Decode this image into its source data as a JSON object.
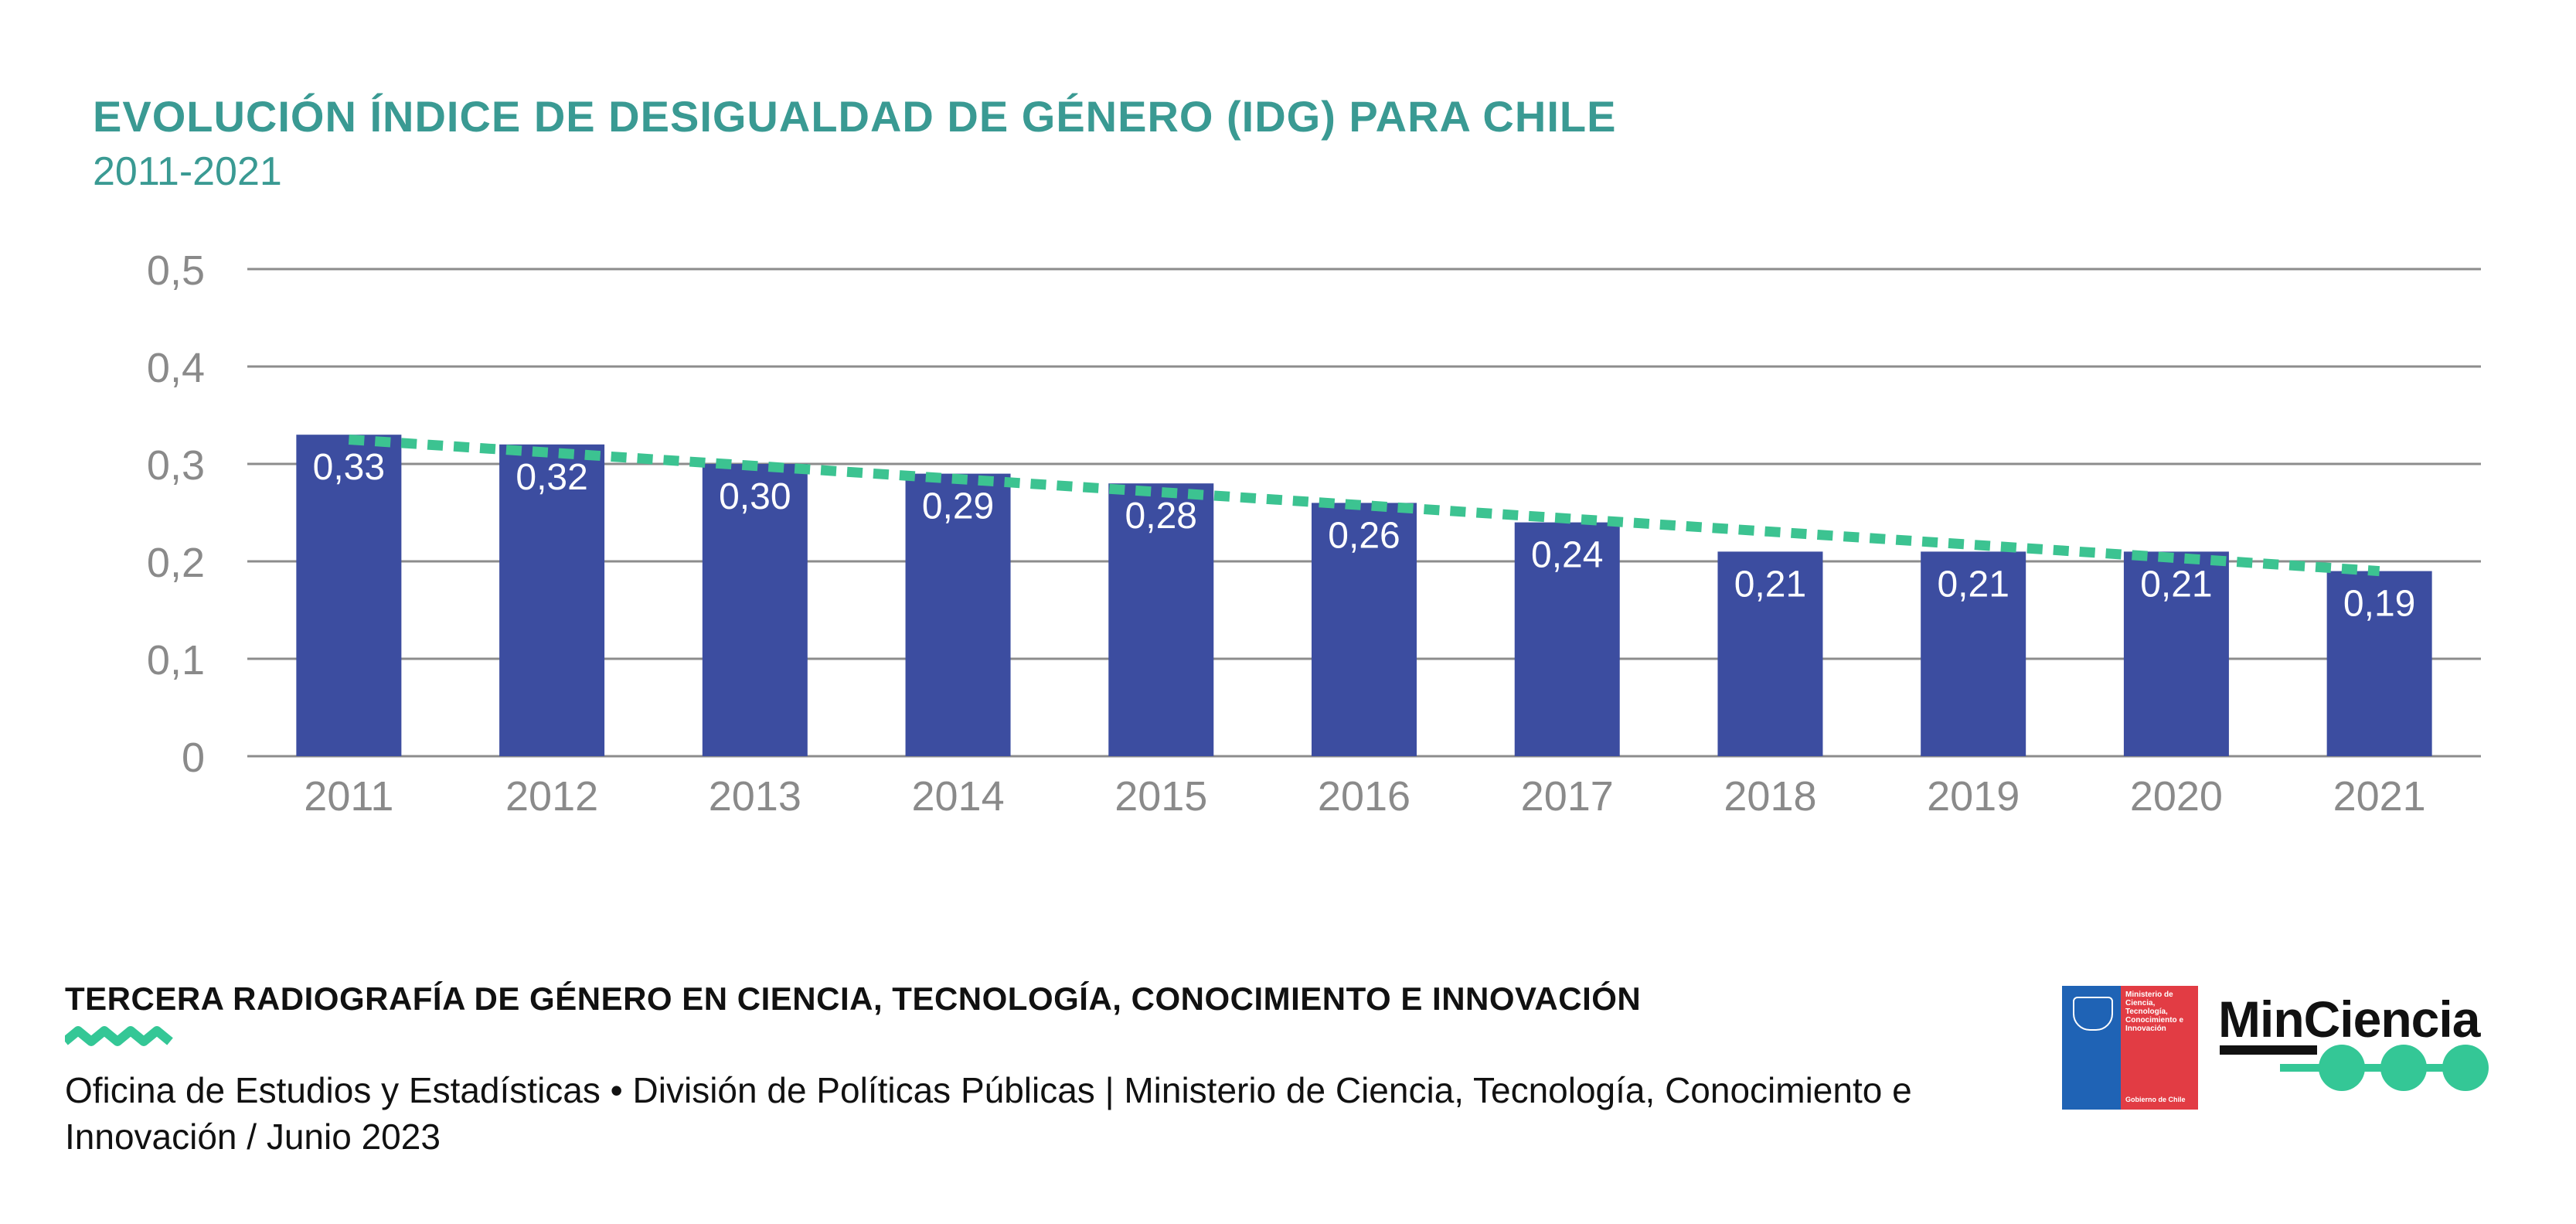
{
  "colors": {
    "title": "#3a9a93",
    "bar": "#3c4da0",
    "trend": "#3cc391",
    "grid": "#8c8c8c",
    "axis_text": "#8a8a8a",
    "gov_blue": "#1f63b5",
    "gov_red": "#e23c44",
    "accent_green": "#34c796"
  },
  "chart_data": {
    "type": "bar",
    "title": "EVOLUCIÓN ÍNDICE DE DESIGUALDAD DE GÉNERO (IDG) PARA CHILE",
    "subtitle": "2011-2021",
    "categories": [
      "2011",
      "2012",
      "2013",
      "2014",
      "2015",
      "2016",
      "2017",
      "2018",
      "2019",
      "2020",
      "2021"
    ],
    "values": [
      0.33,
      0.32,
      0.3,
      0.29,
      0.28,
      0.26,
      0.24,
      0.21,
      0.21,
      0.21,
      0.19
    ],
    "data_labels": [
      "0,33",
      "0,32",
      "0,30",
      "0,29",
      "0,28",
      "0,26",
      "0,24",
      "0,21",
      "0,21",
      "0,21",
      "0,19"
    ],
    "ylim": [
      0,
      0.5
    ],
    "yticks": [
      0,
      0.1,
      0.2,
      0.3,
      0.4,
      0.5
    ],
    "ytick_labels": [
      "0",
      "0,1",
      "0,2",
      "0,3",
      "0,4",
      "0,5"
    ],
    "trendline": {
      "style": "dotted",
      "start": 0.325,
      "end": 0.19
    },
    "grid": true,
    "legend": "none"
  },
  "footer": {
    "title": "TERCERA RADIOGRAFÍA DE GÉNERO EN CIENCIA, TECNOLOGÍA, CONOCIMIENTO E INNOVACIÓN",
    "text": "Oficina de Estudios y Estadísticas • División de Políticas Públicas | Ministerio de Ciencia, Tecnología, Conocimiento e Innovación / Junio 2023"
  },
  "logos": {
    "gov": {
      "text": "Ministerio de Ciencia, Tecnología, Conocimiento e Innovación",
      "sub": "Gobierno de Chile"
    },
    "minciencia": "MinCiencia"
  }
}
